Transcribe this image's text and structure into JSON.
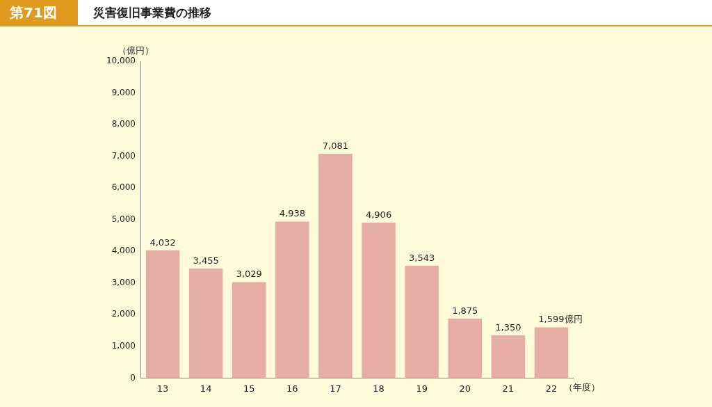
{
  "chart_data": {
    "type": "bar",
    "title": "第71図",
    "subtitle": "災害復旧事業費の推移",
    "ylabel": "（億円）",
    "xlabel": "（年度）",
    "categories": [
      "13",
      "14",
      "15",
      "16",
      "17",
      "18",
      "19",
      "20",
      "21",
      "22"
    ],
    "values": [
      4032,
      3455,
      3029,
      4938,
      7081,
      4906,
      3543,
      1875,
      1350,
      1599
    ],
    "value_labels": [
      "4,032",
      "3,455",
      "3,029",
      "4,938",
      "7,081",
      "4,906",
      "3,543",
      "1,875",
      "1,350",
      "1,599億円"
    ],
    "color": "#e6aca6",
    "ylim": [
      0,
      10000
    ],
    "yticks": [
      0,
      {
        "value": 1000,
        "label": "1,000"
      },
      {
        "value": 2000,
        "label": "2,000"
      },
      {
        "value": 3000,
        "label": "3,000"
      },
      {
        "value": 4000,
        "label": "4,000"
      },
      {
        "value": 5000,
        "label": "5,000"
      },
      {
        "value": 6000,
        "label": "6,000"
      },
      {
        "value": 7000,
        "label": "7,000"
      },
      {
        "value": 8000,
        "label": "8,000"
      },
      {
        "value": 9000,
        "label": "9,000"
      },
      {
        "value": 10000,
        "label": "10,000"
      }
    ],
    "grid": false,
    "legend": false
  }
}
